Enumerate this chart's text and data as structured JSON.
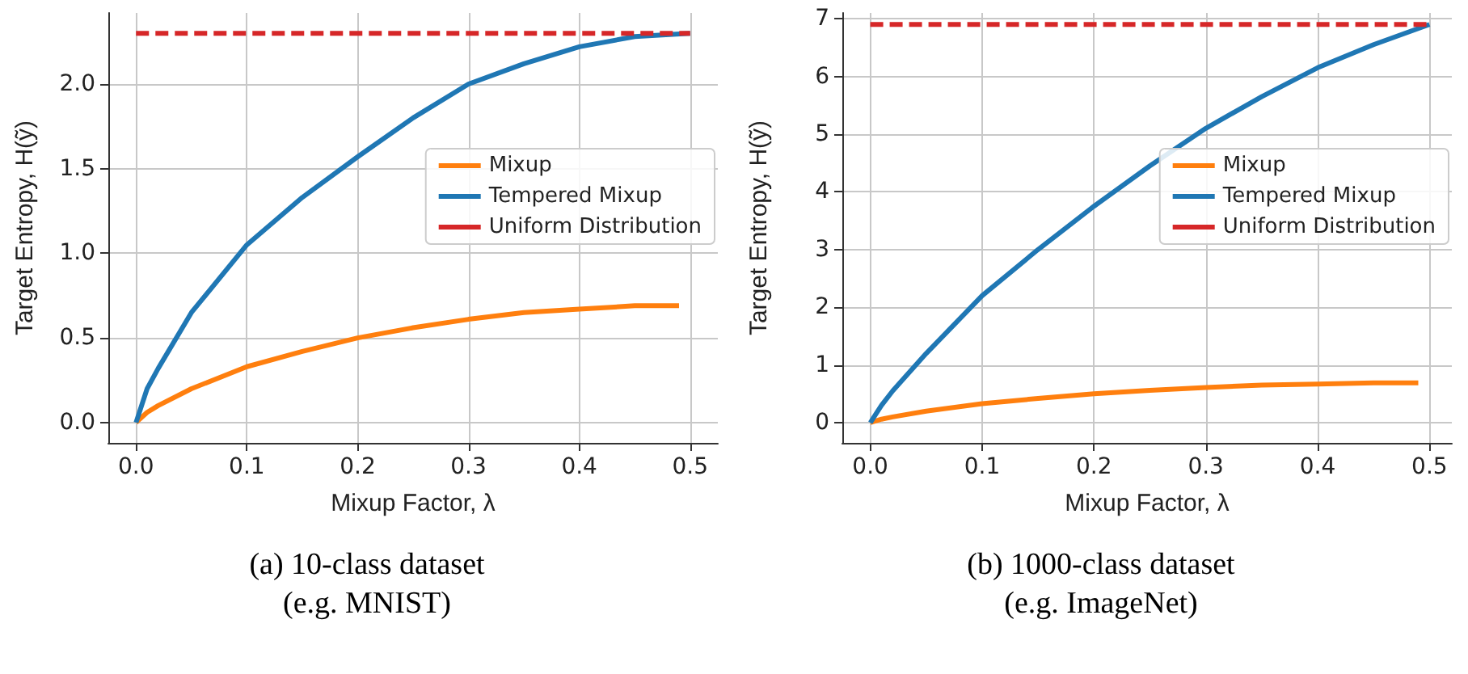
{
  "chart_data": [
    {
      "type": "line",
      "xlabel": "Mixup Factor, λ",
      "ylabel": "Target Entropy, H(ỹ)",
      "xlim": [
        -0.025,
        0.525
      ],
      "ylim": [
        -0.12,
        2.42
      ],
      "xticks": [
        {
          "value": 0,
          "label": "0.0"
        },
        0.1,
        0.2,
        0.3,
        0.4,
        0.5
      ],
      "yticks": [
        {
          "value": 0,
          "label": "0.0"
        },
        0.5,
        {
          "value": 1,
          "label": "1.0"
        },
        1.5,
        {
          "value": 2,
          "label": "2.0"
        }
      ],
      "grid": true,
      "legend": "right",
      "marker": "none",
      "annotations": [
        "(a) 10-class dataset",
        "(e.g. MNIST)"
      ],
      "series": [
        {
          "name": "Mixup",
          "color": "#ff7f0e",
          "line_style": "solid",
          "x": [
            0,
            0.01,
            0.02,
            0.05,
            0.1,
            0.15,
            0.2,
            0.25,
            0.3,
            0.35,
            0.4,
            0.45,
            0.49
          ],
          "values": [
            0,
            0.06,
            0.1,
            0.2,
            0.33,
            0.42,
            0.5,
            0.56,
            0.61,
            0.65,
            0.67,
            0.69,
            0.69
          ]
        },
        {
          "name": "Tempered Mixup",
          "color": "#1f77b4",
          "line_style": "solid",
          "x": [
            0,
            0.01,
            0.02,
            0.05,
            0.1,
            0.15,
            0.2,
            0.25,
            0.3,
            0.35,
            0.4,
            0.45,
            0.5
          ],
          "values": [
            0,
            0.2,
            0.32,
            0.65,
            1.05,
            1.33,
            1.57,
            1.8,
            2.0,
            2.12,
            2.22,
            2.28,
            2.3
          ]
        },
        {
          "name": "Uniform Distribution",
          "color": "#d62728",
          "line_style": "dashed",
          "x": [
            0,
            0.5
          ],
          "values": [
            2.3,
            2.3
          ]
        }
      ]
    },
    {
      "type": "line",
      "xlabel": "Mixup Factor, λ",
      "ylabel": "Target Entropy, H(ỹ)",
      "xlim": [
        -0.025,
        0.52
      ],
      "ylim": [
        -0.35,
        7.1
      ],
      "xticks": [
        {
          "value": 0,
          "label": "0.0"
        },
        0.1,
        0.2,
        0.3,
        0.4,
        0.5
      ],
      "yticks": [
        0,
        1,
        2,
        3,
        4,
        5,
        6,
        7
      ],
      "grid": true,
      "legend": "right",
      "marker": "none",
      "annotations": [
        "(b) 1000-class dataset",
        "(e.g. ImageNet)"
      ],
      "series": [
        {
          "name": "Mixup",
          "color": "#ff7f0e",
          "line_style": "solid",
          "x": [
            0,
            0.01,
            0.02,
            0.05,
            0.1,
            0.15,
            0.2,
            0.25,
            0.3,
            0.35,
            0.4,
            0.45,
            0.49
          ],
          "values": [
            0,
            0.06,
            0.1,
            0.2,
            0.33,
            0.42,
            0.5,
            0.56,
            0.61,
            0.65,
            0.67,
            0.69,
            0.69
          ]
        },
        {
          "name": "Tempered Mixup",
          "color": "#1f77b4",
          "line_style": "solid",
          "x": [
            0,
            0.01,
            0.02,
            0.05,
            0.1,
            0.15,
            0.2,
            0.25,
            0.3,
            0.35,
            0.4,
            0.45,
            0.5
          ],
          "values": [
            0,
            0.3,
            0.55,
            1.2,
            2.2,
            3.0,
            3.75,
            4.45,
            5.1,
            5.65,
            6.15,
            6.55,
            6.9
          ]
        },
        {
          "name": "Uniform Distribution",
          "color": "#d62728",
          "line_style": "dashed",
          "x": [
            0,
            0.5
          ],
          "values": [
            6.9,
            6.9
          ]
        }
      ]
    }
  ]
}
